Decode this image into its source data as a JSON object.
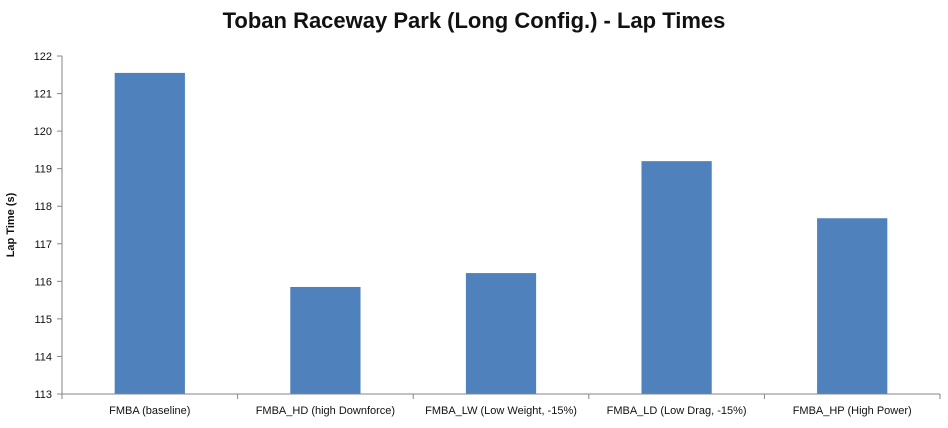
{
  "chart_data": {
    "type": "bar",
    "title": "Toban Raceway Park (Long Config.) - Lap Times",
    "xlabel": "",
    "ylabel": "Lap Time (s)",
    "ylim": [
      113,
      122
    ],
    "yticks": [
      113,
      114,
      115,
      116,
      117,
      118,
      119,
      120,
      121,
      122
    ],
    "grid": false,
    "legend": "none",
    "categories": [
      "FMBA (baseline)",
      "FMBA_HD (high Downforce)",
      "FMBA_LW (Low Weight, -15%)",
      "FMBA_LD (Low Drag, -15%)",
      "FMBA_HP (High Power)"
    ],
    "values": [
      121.55,
      115.85,
      116.22,
      119.2,
      117.68
    ],
    "bar_color": "#4f81bd"
  }
}
